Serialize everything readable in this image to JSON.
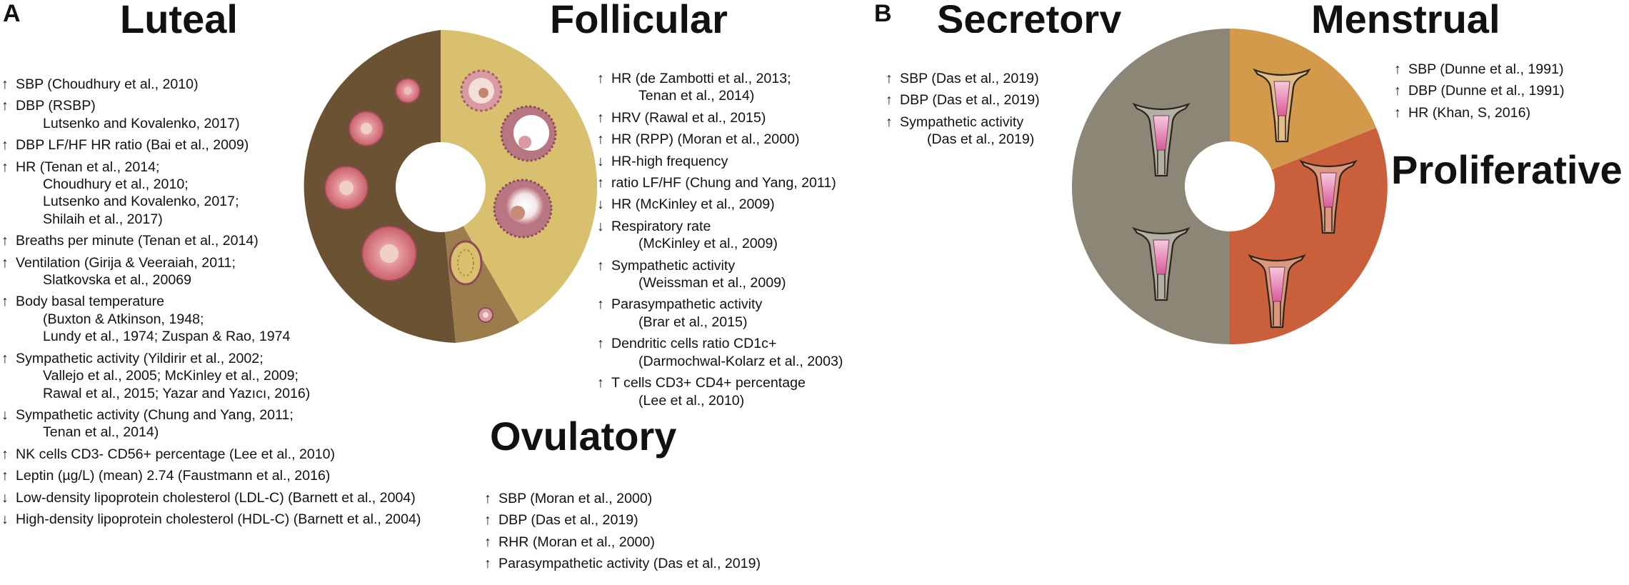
{
  "panel_a": {
    "letter": "A",
    "titles": {
      "luteal": "Luteal",
      "follicular": "Follicular",
      "ovulatory": "Ovulatory"
    },
    "colors": {
      "luteal": "#6b5233",
      "follicular": "#d8c06f",
      "ovulatory": "#9b7d4c",
      "hole": "#ffffff"
    },
    "luteal_list": [
      {
        "arrow": "↑",
        "lines": [
          "SBP (Choudhury et al., 2010)"
        ]
      },
      {
        "arrow": "↑",
        "lines": [
          "DBP (RSBP)",
          "Lutsenko and Kovalenko, 2017)"
        ]
      },
      {
        "arrow": "↑",
        "lines": [
          "DBP LF/HF HR ratio (Bai et al., 2009)"
        ]
      },
      {
        "arrow": "↑",
        "lines": [
          "HR (Tenan et al., 2014;",
          "Choudhury et al., 2010;",
          "Lutsenko and Kovalenko, 2017;",
          "Shilaih et al., 2017)"
        ]
      },
      {
        "arrow": "↑",
        "lines": [
          "Breaths per minute (Tenan et al., 2014)"
        ]
      },
      {
        "arrow": "↑",
        "lines": [
          "Ventilation (Girija & Veeraiah, 2011;",
          "Slatkovska et al., 20069"
        ]
      },
      {
        "arrow": "↑",
        "lines": [
          "Body basal temperature",
          "(Buxton & Atkinson, 1948;",
          "Lundy et al., 1974; Zuspan & Rao, 1974"
        ]
      },
      {
        "arrow": "↑",
        "lines": [
          "Sympathetic activity (Yildirir et al., 2002;",
          "Vallejo et al., 2005; McKinley et al., 2009;",
          "Rawal et al., 2015; Yazar and Yazıcı, 2016)"
        ]
      },
      {
        "arrow": "↓",
        "lines": [
          "Sympathetic activity (Chung and Yang, 2011;",
          "Tenan et al., 2014)"
        ]
      },
      {
        "arrow": "↑",
        "lines": [
          "NK cells CD3- CD56+ percentage (Lee et al., 2010)"
        ]
      },
      {
        "arrow": "↑",
        "lines": [
          "Leptin (µg/L) (mean) 2.74 (Faustmann et al., 2016)"
        ]
      },
      {
        "arrow": "↓",
        "lines": [
          "Low-density lipoprotein cholesterol (LDL-C) (Barnett et al., 2004)"
        ]
      },
      {
        "arrow": "↓",
        "lines": [
          "High-density lipoprotein cholesterol (HDL-C) (Barnett et al., 2004)"
        ]
      }
    ],
    "follicular_list": [
      {
        "arrow": "↑",
        "lines": [
          "HR (de Zambotti et al., 2013;",
          "Tenan et al., 2014)"
        ]
      },
      {
        "arrow": "↑",
        "lines": [
          "HRV (Rawal et al., 2015)"
        ]
      },
      {
        "arrow": "↑",
        "lines": [
          "HR (RPP) (Moran et al., 2000)"
        ]
      },
      {
        "arrow": "↓",
        "lines": [
          "HR-high frequency"
        ]
      },
      {
        "arrow": "↑",
        "lines": [
          "ratio LF/HF (Chung and Yang, 2011)"
        ]
      },
      {
        "arrow": "↓",
        "lines": [
          "HR (McKinley et al., 2009)"
        ]
      },
      {
        "arrow": "↓",
        "lines": [
          "Respiratory rate",
          "(McKinley et al., 2009)"
        ]
      },
      {
        "arrow": "↑",
        "lines": [
          "Sympathetic activity",
          "(Weissman et al., 2009)"
        ]
      },
      {
        "arrow": "↑",
        "lines": [
          "Parasympathetic activity",
          "(Brar et al., 2015)"
        ]
      },
      {
        "arrow": "↑",
        "lines": [
          "Dendritic cells ratio CD1c+",
          "(Darmochwal-Kolarz et al., 2003)"
        ]
      },
      {
        "arrow": "↑",
        "lines": [
          "T cells CD3+ CD4+ percentage",
          "(Lee et al., 2010)"
        ]
      }
    ],
    "ovulatory_list": [
      {
        "arrow": "↑",
        "lines": [
          "SBP (Moran et al., 2000)"
        ]
      },
      {
        "arrow": "↑",
        "lines": [
          "DBP (Das et al., 2019)"
        ]
      },
      {
        "arrow": "↑",
        "lines": [
          "RHR (Moran et al., 2000)"
        ]
      },
      {
        "arrow": "↑",
        "lines": [
          "Parasympathetic activity (Das et al., 2019)"
        ]
      }
    ]
  },
  "panel_b": {
    "letter": "B",
    "titles": {
      "secretory": "Secretory",
      "menstrual": "Menstrual",
      "proliferative": "Proliferative"
    },
    "colors": {
      "secretory": "#8b8676",
      "menstrual": "#d29a4a",
      "proliferative": "#c9603b",
      "hole": "#ffffff"
    },
    "secretory_list": [
      {
        "arrow": "↑",
        "lines": [
          "SBP (Das et al., 2019)"
        ]
      },
      {
        "arrow": "↑",
        "lines": [
          "DBP (Das et al., 2019)"
        ]
      },
      {
        "arrow": "↑",
        "lines": [
          "Sympathetic activity",
          "(Das et al., 2019)"
        ]
      }
    ],
    "menstrual_list": [
      {
        "arrow": "↑",
        "lines": [
          "SBP (Dunne et al., 1991)"
        ]
      },
      {
        "arrow": "↑",
        "lines": [
          "DBP (Dunne et al., 1991)"
        ]
      },
      {
        "arrow": "↑",
        "lines": [
          "HR (Khan, S, 2016)"
        ]
      }
    ]
  }
}
